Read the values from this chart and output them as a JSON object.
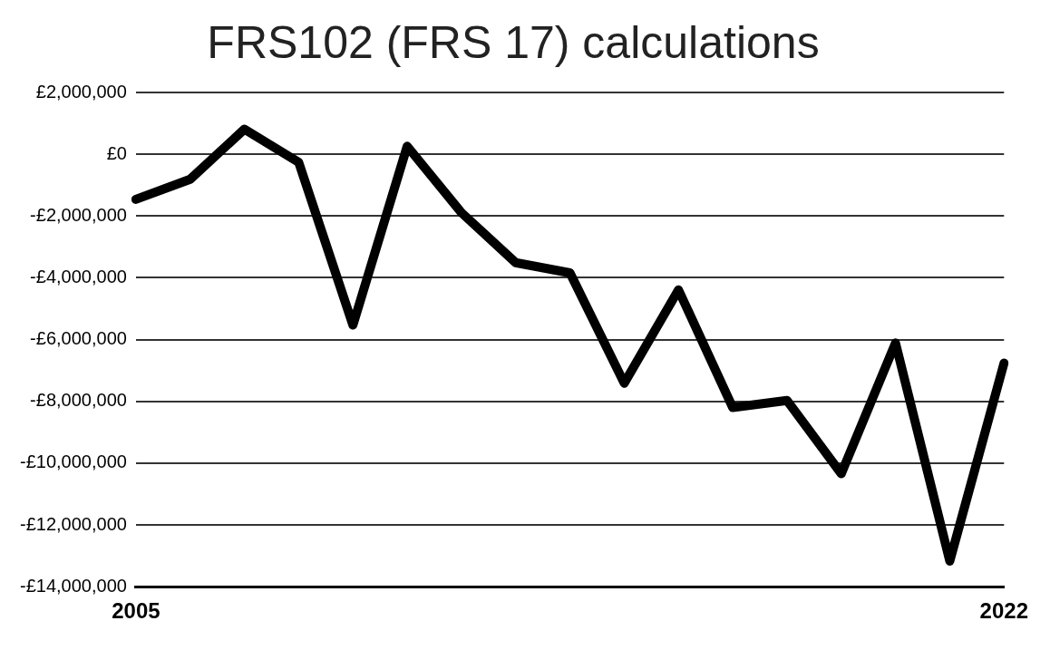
{
  "chart_data": {
    "type": "line",
    "title": "FRS102 (FRS 17) calculations",
    "categories": [
      "2005",
      null,
      null,
      null,
      null,
      null,
      null,
      null,
      null,
      null,
      null,
      null,
      null,
      null,
      null,
      null,
      "2022"
    ],
    "series": [
      {
        "color": "#000000",
        "values": [
          -1460000,
          -810000,
          810000,
          -260000,
          -5530000,
          260000,
          -1890000,
          -3510000,
          -3840000,
          -7410000,
          -4390000,
          -8200000,
          -7970000,
          -10340000,
          -6110000,
          -13170000,
          -6760000
        ]
      }
    ],
    "ylim": [
      -14000000,
      2000000
    ],
    "yticks": [
      {
        "value": 2000000,
        "label": "£2,000,000"
      },
      {
        "value": 0,
        "label": "£0"
      },
      {
        "value": -2000000,
        "label": "-£2,000,000"
      },
      {
        "value": -4000000,
        "label": "-£4,000,000"
      },
      {
        "value": -6000000,
        "label": "-£6,000,000"
      },
      {
        "value": -8000000,
        "label": "-£8,000,000"
      },
      {
        "value": -10000000,
        "label": "-£10,000,000"
      },
      {
        "value": -12000000,
        "label": "-£12,000,000"
      },
      {
        "value": -14000000,
        "label": "-£14,000,000"
      }
    ],
    "grid": "y",
    "legend": false,
    "marker": "none",
    "line_style": "solid"
  }
}
